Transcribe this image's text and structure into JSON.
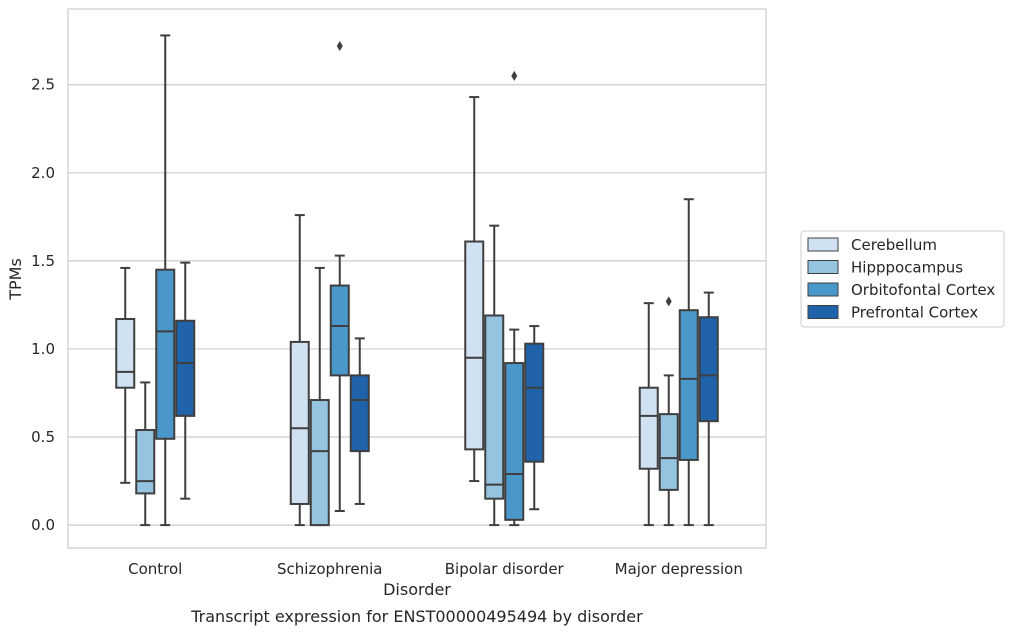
{
  "chart_data": {
    "type": "box",
    "caption": "Transcript expression for ENST00000495494 by disorder",
    "xlabel": "Disorder",
    "ylabel": "TPMs",
    "ylim": [
      -0.13,
      2.93
    ],
    "yticks": [
      0.0,
      0.5,
      1.0,
      1.5,
      2.0,
      2.5
    ],
    "ytick_labels": [
      "0.0",
      "0.5",
      "1.0",
      "1.5",
      "2.0",
      "2.5"
    ],
    "grid": "horizontal",
    "legend_position": "right",
    "categories": [
      "Control",
      "Schizophrenia",
      "Bipolar disorder",
      "Major depression"
    ],
    "series": [
      {
        "name": "Cerebellum",
        "color": "#d0e1f2",
        "boxes": [
          {
            "whisker_low": 0.24,
            "q1": 0.78,
            "median": 0.87,
            "q3": 1.17,
            "whisker_high": 1.46,
            "outliers": []
          },
          {
            "whisker_low": 0.0,
            "q1": 0.12,
            "median": 0.55,
            "q3": 1.04,
            "whisker_high": 1.76,
            "outliers": []
          },
          {
            "whisker_low": 0.25,
            "q1": 0.43,
            "median": 0.95,
            "q3": 1.61,
            "whisker_high": 2.43,
            "outliers": []
          },
          {
            "whisker_low": 0.0,
            "q1": 0.32,
            "median": 0.62,
            "q3": 0.78,
            "whisker_high": 1.26,
            "outliers": []
          }
        ]
      },
      {
        "name": "Hipppocampus",
        "color": "#94c4df",
        "boxes": [
          {
            "whisker_low": 0.0,
            "q1": 0.18,
            "median": 0.25,
            "q3": 0.54,
            "whisker_high": 0.81,
            "outliers": []
          },
          {
            "whisker_low": 0.0,
            "q1": 0.0,
            "median": 0.42,
            "q3": 0.71,
            "whisker_high": 1.46,
            "outliers": []
          },
          {
            "whisker_low": 0.0,
            "q1": 0.15,
            "median": 0.23,
            "q3": 1.19,
            "whisker_high": 1.7,
            "outliers": []
          },
          {
            "whisker_low": 0.0,
            "q1": 0.2,
            "median": 0.38,
            "q3": 0.63,
            "whisker_high": 0.85,
            "outliers": [
              1.27
            ]
          }
        ]
      },
      {
        "name": "Orbitofontal Cortex",
        "color": "#4a98c9",
        "boxes": [
          {
            "whisker_low": 0.0,
            "q1": 0.49,
            "median": 1.1,
            "q3": 1.45,
            "whisker_high": 2.78,
            "outliers": []
          },
          {
            "whisker_low": 0.08,
            "q1": 0.85,
            "median": 1.13,
            "q3": 1.36,
            "whisker_high": 1.53,
            "outliers": [
              2.72
            ]
          },
          {
            "whisker_low": 0.0,
            "q1": 0.03,
            "median": 0.29,
            "q3": 0.92,
            "whisker_high": 1.11,
            "outliers": [
              2.55
            ]
          },
          {
            "whisker_low": 0.0,
            "q1": 0.37,
            "median": 0.83,
            "q3": 1.22,
            "whisker_high": 1.85,
            "outliers": []
          }
        ]
      },
      {
        "name": "Prefrontal Cortex",
        "color": "#2163aa",
        "boxes": [
          {
            "whisker_low": 0.15,
            "q1": 0.62,
            "median": 0.92,
            "q3": 1.16,
            "whisker_high": 1.49,
            "outliers": []
          },
          {
            "whisker_low": 0.12,
            "q1": 0.42,
            "median": 0.71,
            "q3": 0.85,
            "whisker_high": 1.06,
            "outliers": []
          },
          {
            "whisker_low": 0.09,
            "q1": 0.36,
            "median": 0.78,
            "q3": 1.03,
            "whisker_high": 1.13,
            "outliers": []
          },
          {
            "whisker_low": 0.0,
            "q1": 0.59,
            "median": 0.85,
            "q3": 1.18,
            "whisker_high": 1.32,
            "outliers": []
          }
        ]
      }
    ]
  }
}
